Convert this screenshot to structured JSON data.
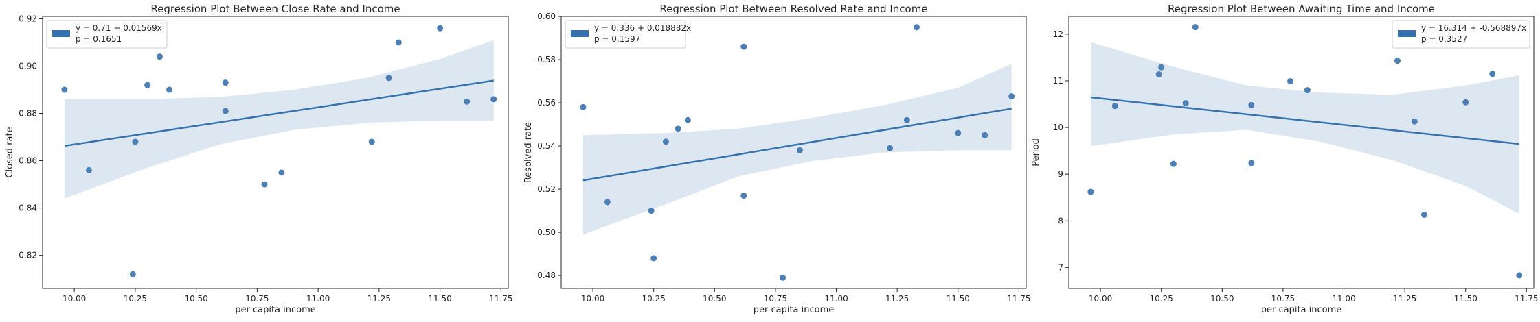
{
  "chart_data": [
    {
      "type": "scatter",
      "title": "Regression Plot Between Close Rate and Income",
      "xlabel": "per capita income",
      "ylabel": "Closed rate",
      "xlim": [
        9.87,
        11.78
      ],
      "ylim": [
        0.806,
        0.921
      ],
      "xticks": [
        10.0,
        10.25,
        10.5,
        10.75,
        11.0,
        11.25,
        11.5,
        11.75
      ],
      "xtick_labels": [
        "10.00",
        "10.25",
        "10.50",
        "10.75",
        "11.00",
        "11.25",
        "11.50",
        "11.75"
      ],
      "yticks": [
        0.82,
        0.84,
        0.86,
        0.88,
        0.9,
        0.92
      ],
      "ytick_labels": [
        "0.82",
        "0.84",
        "0.86",
        "0.88",
        "0.90",
        "0.92"
      ],
      "legend_position": "top-left",
      "legend_text": [
        "y = 0.71 + 0.01569x",
        "p = 0.1651"
      ],
      "points": [
        [
          9.96,
          0.89
        ],
        [
          10.06,
          0.856
        ],
        [
          10.24,
          0.812
        ],
        [
          10.25,
          0.868
        ],
        [
          10.3,
          0.892
        ],
        [
          10.35,
          0.904
        ],
        [
          10.39,
          0.89
        ],
        [
          10.62,
          0.893
        ],
        [
          10.62,
          0.881
        ],
        [
          10.78,
          0.85
        ],
        [
          10.85,
          0.855
        ],
        [
          11.22,
          0.868
        ],
        [
          11.29,
          0.895
        ],
        [
          11.33,
          0.91
        ],
        [
          11.5,
          0.916
        ],
        [
          11.61,
          0.885
        ],
        [
          11.72,
          0.886
        ]
      ],
      "fit": {
        "intercept": 0.71,
        "slope": 0.01569
      },
      "ci_upper": [
        [
          9.96,
          0.886
        ],
        [
          10.3,
          0.886
        ],
        [
          10.6,
          0.887
        ],
        [
          10.9,
          0.89
        ],
        [
          11.2,
          0.895
        ],
        [
          11.5,
          0.903
        ],
        [
          11.72,
          0.911
        ]
      ],
      "ci_lower": [
        [
          9.96,
          0.844
        ],
        [
          10.3,
          0.857
        ],
        [
          10.6,
          0.867
        ],
        [
          10.9,
          0.873
        ],
        [
          11.2,
          0.876
        ],
        [
          11.5,
          0.877
        ],
        [
          11.72,
          0.877
        ]
      ]
    },
    {
      "type": "scatter",
      "title": "Regression Plot Between Resolved Rate and Income",
      "xlabel": "per capita income",
      "ylabel": "Resolved rate",
      "xlim": [
        9.87,
        11.78
      ],
      "ylim": [
        0.474,
        0.6
      ],
      "xticks": [
        10.0,
        10.25,
        10.5,
        10.75,
        11.0,
        11.25,
        11.5,
        11.75
      ],
      "xtick_labels": [
        "10.00",
        "10.25",
        "10.50",
        "10.75",
        "11.00",
        "11.25",
        "11.50",
        "11.75"
      ],
      "yticks": [
        0.48,
        0.5,
        0.52,
        0.54,
        0.56,
        0.58,
        0.6
      ],
      "ytick_labels": [
        "0.48",
        "0.50",
        "0.52",
        "0.54",
        "0.56",
        "0.58",
        "0.60"
      ],
      "legend_position": "top-left",
      "legend_text": [
        "y = 0.336 + 0.018882x",
        "p = 0.1597"
      ],
      "points": [
        [
          9.96,
          0.558
        ],
        [
          10.06,
          0.514
        ],
        [
          10.24,
          0.51
        ],
        [
          10.25,
          0.488
        ],
        [
          10.3,
          0.542
        ],
        [
          10.35,
          0.548
        ],
        [
          10.39,
          0.552
        ],
        [
          10.62,
          0.586
        ],
        [
          10.62,
          0.517
        ],
        [
          10.78,
          0.479
        ],
        [
          10.85,
          0.538
        ],
        [
          11.22,
          0.539
        ],
        [
          11.29,
          0.552
        ],
        [
          11.33,
          0.595
        ],
        [
          11.5,
          0.546
        ],
        [
          11.61,
          0.545
        ],
        [
          11.72,
          0.563
        ]
      ],
      "fit": {
        "intercept": 0.336,
        "slope": 0.018882
      },
      "ci_upper": [
        [
          9.96,
          0.545
        ],
        [
          10.3,
          0.546
        ],
        [
          10.6,
          0.548
        ],
        [
          10.9,
          0.553
        ],
        [
          11.2,
          0.559
        ],
        [
          11.5,
          0.567
        ],
        [
          11.72,
          0.578
        ]
      ],
      "ci_lower": [
        [
          9.96,
          0.499
        ],
        [
          10.3,
          0.513
        ],
        [
          10.6,
          0.526
        ],
        [
          10.9,
          0.533
        ],
        [
          11.2,
          0.537
        ],
        [
          11.5,
          0.538
        ],
        [
          11.72,
          0.538
        ]
      ]
    },
    {
      "type": "scatter",
      "title": "Regression Plot Between Awaiting Time and Income",
      "xlabel": "per capita income",
      "ylabel": "Period",
      "xlim": [
        9.87,
        11.78
      ],
      "ylim": [
        6.55,
        12.38
      ],
      "xticks": [
        10.0,
        10.25,
        10.5,
        10.75,
        11.0,
        11.25,
        11.5,
        11.75
      ],
      "xtick_labels": [
        "10.00",
        "10.25",
        "10.50",
        "10.75",
        "11.00",
        "11.25",
        "11.50",
        "11.75"
      ],
      "yticks": [
        7,
        8,
        9,
        10,
        11,
        12
      ],
      "ytick_labels": [
        "7",
        "8",
        "9",
        "10",
        "11",
        "12"
      ],
      "legend_position": "top-right",
      "legend_text": [
        "y = 16.314 + -0.568897x",
        "p = 0.3527"
      ],
      "points": [
        [
          9.96,
          8.62
        ],
        [
          10.06,
          10.46
        ],
        [
          10.24,
          11.14
        ],
        [
          10.25,
          11.29
        ],
        [
          10.3,
          9.22
        ],
        [
          10.35,
          10.52
        ],
        [
          10.39,
          12.15
        ],
        [
          10.62,
          10.48
        ],
        [
          10.62,
          9.24
        ],
        [
          10.78,
          10.99
        ],
        [
          10.85,
          10.8
        ],
        [
          11.22,
          11.43
        ],
        [
          11.29,
          10.13
        ],
        [
          11.33,
          8.13
        ],
        [
          11.5,
          10.54
        ],
        [
          11.61,
          11.15
        ],
        [
          11.72,
          6.83
        ]
      ],
      "fit": {
        "intercept": 16.314,
        "slope": -0.568897
      },
      "ci_upper": [
        [
          9.96,
          11.83
        ],
        [
          10.3,
          11.3
        ],
        [
          10.6,
          10.9
        ],
        [
          10.9,
          10.75
        ],
        [
          11.2,
          10.7
        ],
        [
          11.5,
          10.9
        ],
        [
          11.72,
          11.12
        ]
      ],
      "ci_lower": [
        [
          9.96,
          9.6
        ],
        [
          10.3,
          9.85
        ],
        [
          10.6,
          9.95
        ],
        [
          10.9,
          9.7
        ],
        [
          11.2,
          9.3
        ],
        [
          11.5,
          8.75
        ],
        [
          11.72,
          8.15
        ]
      ]
    }
  ],
  "colors": {
    "points": "#4c7fb5",
    "fit_line": "#3772b0",
    "ci_band": "#dde7f1",
    "legend_patch": "#3772b0",
    "axes": "#262626"
  }
}
